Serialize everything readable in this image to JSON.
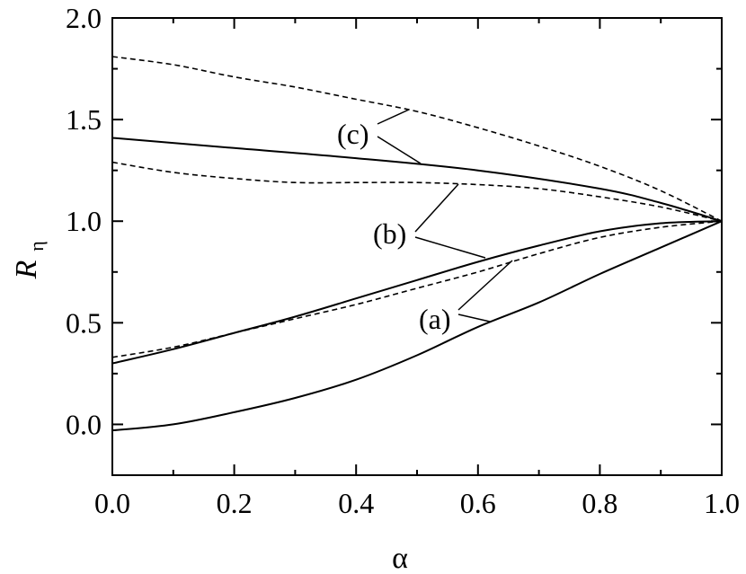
{
  "chart_data": {
    "type": "line",
    "xlabel": "α",
    "ylabel": "R",
    "ylabel_subscript": "η",
    "xlim": [
      0.0,
      1.0
    ],
    "ylim": [
      -0.25,
      2.0
    ],
    "xticks": [
      "0.0",
      "0.2",
      "0.4",
      "0.6",
      "0.8",
      "1.0"
    ],
    "yticks": [
      "0.0",
      "0.5",
      "1.0",
      "1.5",
      "2.0"
    ],
    "grid": false,
    "legend": "none",
    "annotations": [
      "(a)",
      "(b)",
      "(c)"
    ],
    "series": [
      {
        "style": "dashed",
        "x": [
          0.0,
          0.1,
          0.2,
          0.3,
          0.4,
          0.5,
          0.6,
          0.7,
          0.8,
          0.9,
          1.0
        ],
        "values": [
          1.81,
          1.77,
          1.71,
          1.66,
          1.6,
          1.54,
          1.46,
          1.37,
          1.27,
          1.15,
          1.0
        ]
      },
      {
        "style": "solid",
        "x": [
          0.0,
          0.2,
          0.4,
          0.6,
          0.8,
          0.9,
          1.0
        ],
        "values": [
          1.41,
          1.36,
          1.31,
          1.25,
          1.16,
          1.09,
          1.0
        ]
      },
      {
        "style": "dashed",
        "x": [
          0.0,
          0.1,
          0.2,
          0.3,
          0.4,
          0.5,
          0.6,
          0.7,
          0.8,
          0.9,
          1.0
        ],
        "values": [
          1.29,
          1.24,
          1.21,
          1.19,
          1.19,
          1.19,
          1.18,
          1.16,
          1.12,
          1.07,
          1.0
        ]
      },
      {
        "style": "solid",
        "x": [
          0.0,
          0.1,
          0.2,
          0.3,
          0.4,
          0.5,
          0.6,
          0.7,
          0.8,
          0.9,
          1.0
        ],
        "values": [
          0.3,
          0.37,
          0.45,
          0.53,
          0.62,
          0.71,
          0.8,
          0.88,
          0.95,
          0.99,
          1.0
        ]
      },
      {
        "style": "dashed",
        "x": [
          0.0,
          0.1,
          0.2,
          0.3,
          0.4,
          0.5,
          0.6,
          0.7,
          0.8,
          0.9,
          1.0
        ],
        "values": [
          0.33,
          0.38,
          0.45,
          0.52,
          0.59,
          0.67,
          0.75,
          0.84,
          0.92,
          0.97,
          1.0
        ]
      },
      {
        "style": "solid",
        "x": [
          0.0,
          0.1,
          0.2,
          0.3,
          0.4,
          0.5,
          0.6,
          0.7,
          0.8,
          0.9,
          1.0
        ],
        "values": [
          -0.03,
          0.0,
          0.06,
          0.13,
          0.22,
          0.34,
          0.48,
          0.6,
          0.74,
          0.87,
          1.0
        ]
      }
    ]
  }
}
